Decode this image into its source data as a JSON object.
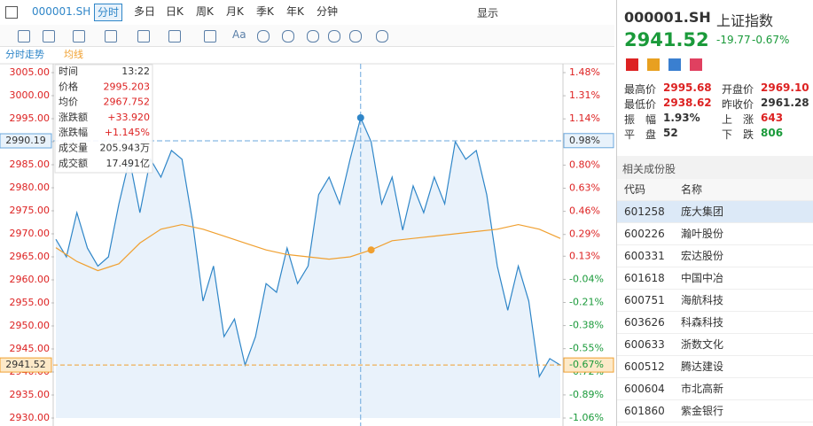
{
  "toolbar": {
    "symbol": "000001.SH",
    "tabs": [
      "分时",
      "多日",
      "日K",
      "周K",
      "月K",
      "季K",
      "年K",
      "分钟"
    ],
    "display": "显示",
    "font_button": "Aa"
  },
  "chart_tab": "分时走势",
  "chart_data": {
    "type": "line",
    "series": [
      {
        "color": "#2f86c8",
        "values": [
          2968.8,
          2965,
          2974.6,
          2966.9,
          2963,
          2965,
          2976.5,
          2986.2,
          2974.6,
          2986.2,
          2982.3,
          2988.1,
          2986.2,
          2972.7,
          2955.4,
          2963,
          2947.7,
          2951.5,
          2941.5,
          2947.7,
          2959.2,
          2957.3,
          2966.9,
          2959.2,
          2963,
          2978.5,
          2982.3,
          2976.5,
          2986.2,
          2995.2,
          2990,
          2976.5,
          2982.3,
          2970.8,
          2980.4,
          2974.6,
          2982.3,
          2976.5,
          2990,
          2986.2,
          2988.1,
          2978.5,
          2963,
          2953.4,
          2963,
          2955.4,
          2939,
          2942.9,
          2941.5
        ]
      },
      {
        "name": "均线",
        "color": "#f0a030",
        "values": [
          2967,
          2964,
          2962,
          2963.5,
          2968,
          2971,
          2972,
          2971,
          2969.5,
          2968,
          2966.5,
          2965.5,
          2965,
          2964.5,
          2965,
          2966.5,
          2968.5,
          2969,
          2969.5,
          2970,
          2970.5,
          2971,
          2972,
          2971,
          2969
        ]
      }
    ],
    "ylim": [
      2930,
      3005
    ],
    "yticks": [
      {
        "value": 3005,
        "label": "3005.00"
      },
      {
        "value": 3000,
        "label": "3000.00"
      },
      {
        "value": 2995,
        "label": "2995.00"
      },
      {
        "value": 2990,
        "label": "2990.00"
      },
      {
        "value": 2985,
        "label": "2985.00"
      },
      {
        "value": 2980,
        "label": "2980.00"
      },
      {
        "value": 2975,
        "label": "2975.00"
      },
      {
        "value": 2970,
        "label": "2970.00"
      },
      {
        "value": 2965,
        "label": "2965.00"
      },
      {
        "value": 2960,
        "label": "2960.00"
      },
      {
        "value": 2955,
        "label": "2955.00"
      },
      {
        "value": 2950,
        "label": "2950.00"
      },
      {
        "value": 2945,
        "label": "2945.00"
      },
      {
        "value": 2940,
        "label": "2940.00"
      },
      {
        "value": 2935,
        "label": "2935.00"
      },
      {
        "value": 2930,
        "label": "2930.00"
      }
    ],
    "y2lim": [
      -1.06,
      1.48
    ],
    "y2ticks": [
      {
        "value": 1.48,
        "label": "1.48%"
      },
      {
        "value": 1.31,
        "label": "1.31%"
      },
      {
        "value": 1.14,
        "label": "1.14%"
      },
      {
        "value": 0.97,
        "label": "0.97%"
      },
      {
        "value": 0.8,
        "label": "0.80%"
      },
      {
        "value": 0.63,
        "label": "0.63%"
      },
      {
        "value": 0.46,
        "label": "0.46%"
      },
      {
        "value": 0.29,
        "label": "0.29%"
      },
      {
        "value": 0.13,
        "label": "0.13%"
      },
      {
        "value": -0.04,
        "label": "-0.04%"
      },
      {
        "value": -0.21,
        "label": "-0.21%"
      },
      {
        "value": -0.38,
        "label": "-0.38%"
      },
      {
        "value": -0.55,
        "label": "-0.55%"
      },
      {
        "value": -0.72,
        "label": "-0.72%"
      },
      {
        "value": -0.89,
        "label": "-0.89%"
      },
      {
        "value": -1.06,
        "label": "-1.06%"
      }
    ],
    "cursor": {
      "y": 2990.19,
      "y2": {
        "value": 0.98,
        "label": "0.98%"
      }
    },
    "last": {
      "y": 2941.52,
      "y2": {
        "value": -0.67,
        "label": "-0.67%"
      }
    },
    "tooltip": [
      [
        "时间",
        "13:22"
      ],
      [
        "价格",
        "2995.203"
      ],
      [
        "均价",
        "2967.752"
      ],
      [
        "涨跌额",
        "+33.920"
      ],
      [
        "涨跌幅",
        "+1.145%"
      ],
      [
        "成交量",
        "205.943万"
      ],
      [
        "成交额",
        "17.491亿"
      ]
    ]
  },
  "quote": {
    "symbol": "000001.SH",
    "name": "上证指数",
    "price": "2941.52",
    "change": "-19.77",
    "change_pct": "-0.67%",
    "stats": [
      [
        "最高价",
        "2995.68",
        "开盘价",
        "2969.10"
      ],
      [
        "最低价",
        "2938.62",
        "昨收价",
        "2961.28"
      ],
      [
        "振　幅",
        "1.93%",
        "上　涨",
        "643"
      ],
      [
        "平　盘",
        "52",
        "下　跌",
        "806"
      ]
    ]
  },
  "related": {
    "title": "相关成份股",
    "header": [
      "代码",
      "名称"
    ],
    "rows": [
      [
        "601258",
        "庞大集团"
      ],
      [
        "600226",
        "瀚叶股份"
      ],
      [
        "600331",
        "宏达股份"
      ],
      [
        "601618",
        "中国中冶"
      ],
      [
        "600751",
        "海航科技"
      ],
      [
        "603626",
        "科森科技"
      ],
      [
        "600633",
        "浙数文化"
      ],
      [
        "600512",
        "腾达建设"
      ],
      [
        "600604",
        "市北高新"
      ],
      [
        "601860",
        "紫金银行"
      ]
    ]
  }
}
